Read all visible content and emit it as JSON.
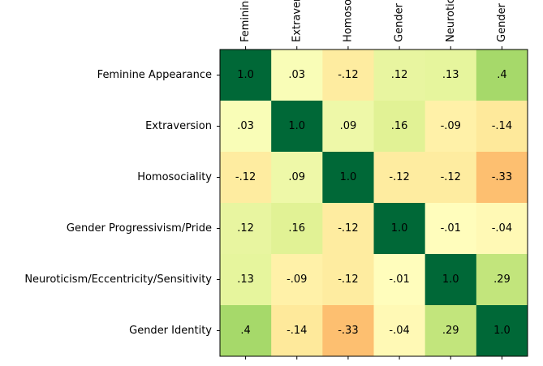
{
  "chart_data": {
    "type": "heatmap",
    "categories": [
      "Feminine Appearance",
      "Extraversion",
      "Homosociality",
      "Gender Progressivism/Pride",
      "Neuroticism/Eccentricity/Sensitivity",
      "Gender Identity"
    ],
    "values": [
      [
        1.0,
        0.03,
        -0.12,
        0.12,
        0.13,
        0.4
      ],
      [
        0.03,
        1.0,
        0.09,
        0.16,
        -0.09,
        -0.14
      ],
      [
        -0.12,
        0.09,
        1.0,
        -0.12,
        -0.12,
        -0.33
      ],
      [
        0.12,
        0.16,
        -0.12,
        1.0,
        -0.01,
        -0.04
      ],
      [
        0.13,
        -0.09,
        -0.12,
        -0.01,
        1.0,
        0.29
      ],
      [
        0.4,
        -0.14,
        -0.33,
        -0.04,
        0.29,
        1.0
      ]
    ],
    "value_labels": [
      [
        "1.0",
        ".03",
        "-.12",
        ".12",
        ".13",
        ".4"
      ],
      [
        ".03",
        "1.0",
        ".09",
        ".16",
        "-.09",
        "-.14"
      ],
      [
        "-.12",
        ".09",
        "1.0",
        "-.12",
        "-.12",
        "-.33"
      ],
      [
        ".12",
        ".16",
        "-.12",
        "1.0",
        "-.01",
        "-.04"
      ],
      [
        ".13",
        "-.09",
        "-.12",
        "-.01",
        "1.0",
        ".29"
      ],
      [
        ".4",
        "-.14",
        "-.33",
        "-.04",
        ".29",
        "1.0"
      ]
    ],
    "colormap": "RdYlGn",
    "clim": [
      -1,
      1
    ]
  }
}
